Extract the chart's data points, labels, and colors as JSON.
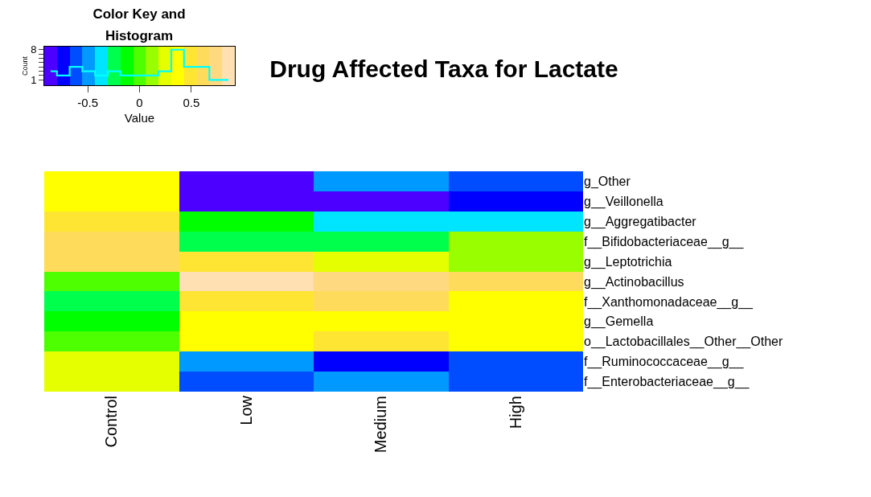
{
  "chart_data": [
    {
      "type": "heatmap",
      "title": "Drug Affected Taxa for Lactate",
      "categories": [
        "Control",
        "Low",
        "Medium",
        "High"
      ],
      "y_categories": [
        "g_Other",
        "g__Veillonella",
        "g__Aggregatibacter",
        "f__Bifidobacteriaceae__g__",
        "g__Leptotrichia",
        "g__Actinobacillus",
        "f__Xanthomonadaceae__g__",
        "g__Gemella",
        "o__Lactobacillales__Other__Other",
        "f__Ruminococcaceae__g__",
        "f__Enterobacteriaceae__g__"
      ],
      "cells": [
        [
          0.37,
          -0.86,
          -0.49,
          -0.61
        ],
        [
          0.37,
          -0.86,
          -0.86,
          -0.74
        ],
        [
          0.49,
          -0.12,
          -0.37,
          -0.37
        ],
        [
          0.61,
          -0.25,
          -0.25,
          0.12
        ],
        [
          0.61,
          0.49,
          0.25,
          0.12
        ],
        [
          0,
          0.86,
          0.74,
          0.61
        ],
        [
          -0.25,
          0.49,
          0.61,
          0.37
        ],
        [
          -0.12,
          0.37,
          0.37,
          0.37
        ],
        [
          0,
          0.37,
          0.49,
          0.37
        ],
        [
          0.25,
          -0.49,
          -0.74,
          -0.61
        ],
        [
          0.25,
          -0.61,
          -0.49,
          -0.61
        ]
      ],
      "clim": [
        -0.92,
        0.92
      ],
      "cticks": [
        -0.5,
        0,
        0.5
      ],
      "clabel": "Value"
    },
    {
      "type": "step",
      "title": "Color Key and Histogram",
      "categories": [
        null,
        null,
        null,
        null,
        null,
        null,
        null,
        null,
        null,
        null,
        null,
        null,
        null,
        null,
        null
      ],
      "values": [
        3,
        2,
        4,
        3,
        2,
        3,
        2,
        2,
        2,
        3,
        8,
        4,
        4,
        1,
        1
      ],
      "color": "#00ffff",
      "ylim": [
        -0.25,
        8.7
      ],
      "yticks": [
        1,
        {
          "value": 2,
          "label": null
        },
        {
          "value": 3,
          "label": null
        },
        {
          "value": 4,
          "label": null
        },
        {
          "value": 5,
          "label": null
        },
        {
          "value": 6,
          "label": null
        },
        {
          "value": 7,
          "label": null
        },
        8
      ],
      "ylabel": "Count",
      "tick_labels": "y"
    }
  ]
}
